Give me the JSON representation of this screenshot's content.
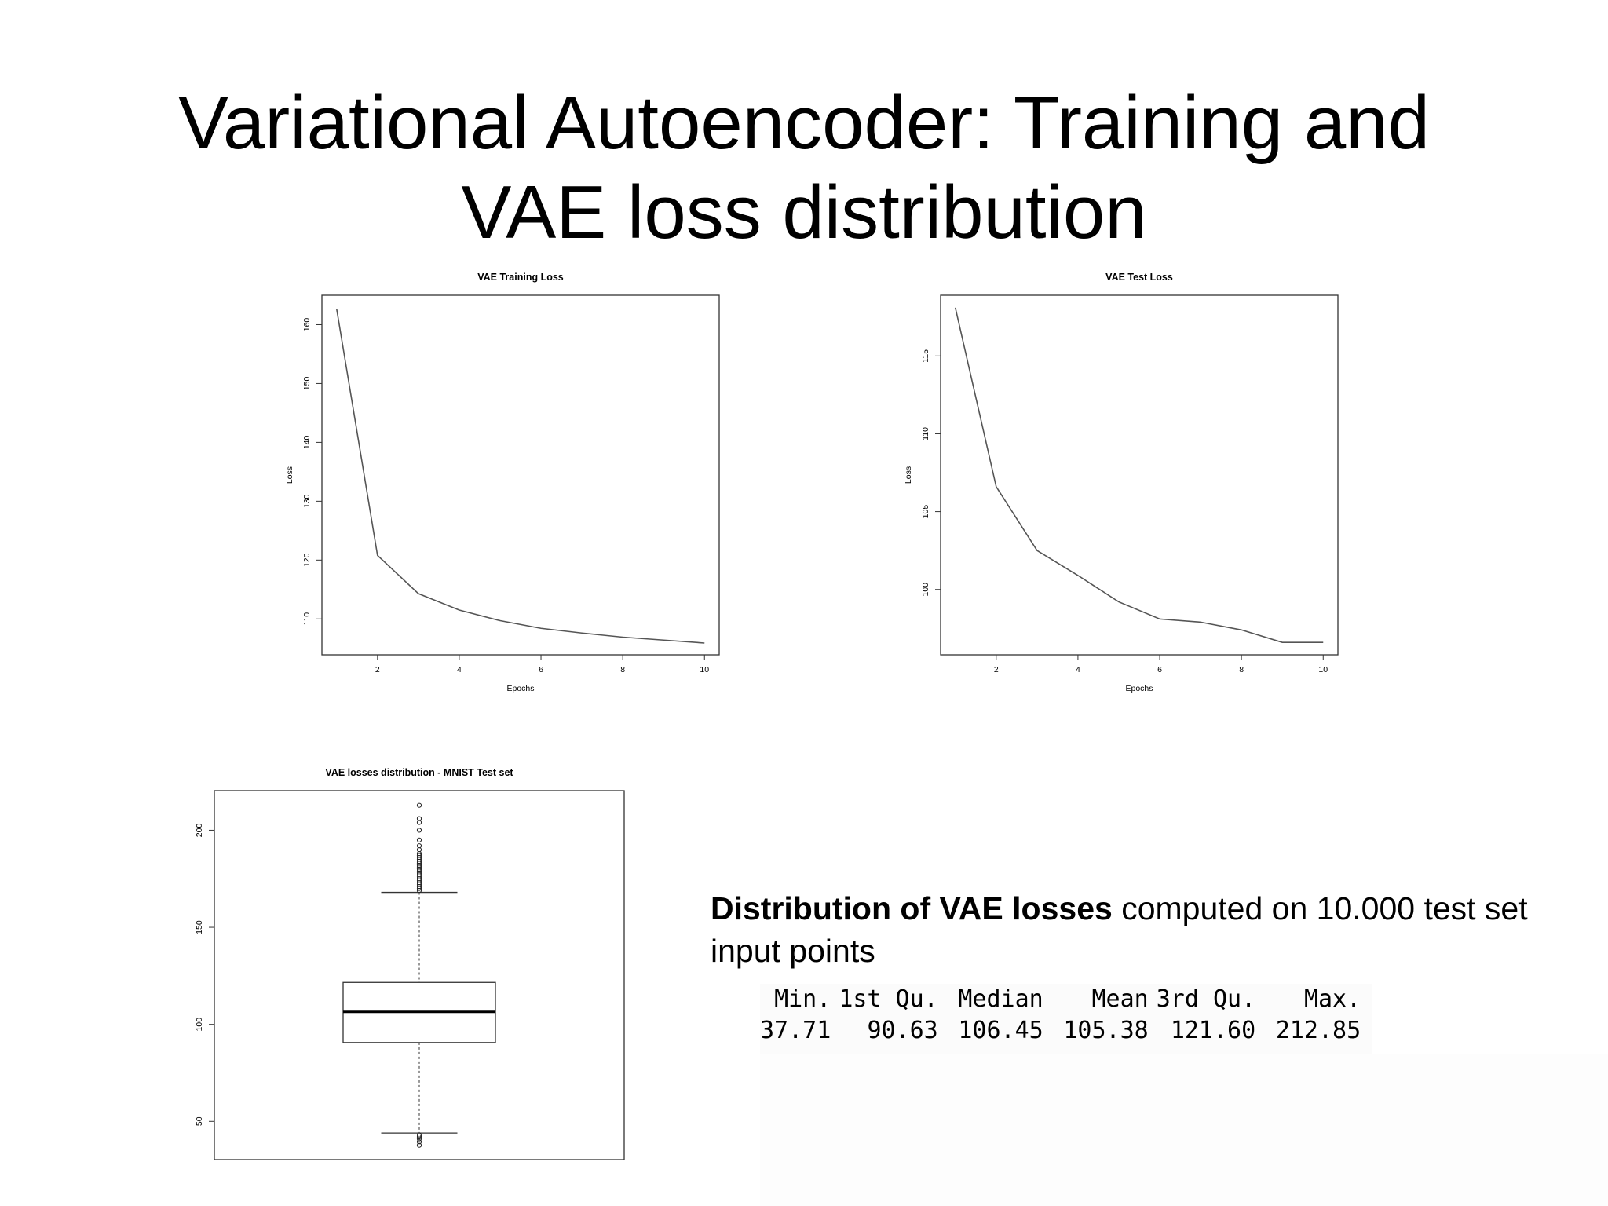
{
  "slide": {
    "title_line1": "Variational Autoencoder: Training and",
    "title_line2": "VAE loss distribution"
  },
  "description": {
    "bold": "Distribution of VAE losses",
    "rest": " computed on 10.000 test set input points"
  },
  "summary_table": {
    "headers": [
      "Min.",
      "1st Qu.",
      "Median",
      "Mean",
      "3rd Qu.",
      "Max."
    ],
    "values": [
      "37.71",
      "90.63",
      "106.45",
      "105.38",
      "121.60",
      "212.85"
    ]
  },
  "chart_data": [
    {
      "id": "train",
      "type": "line",
      "title": "VAE Training Loss",
      "xlabel": "Epochs",
      "ylabel": "Loss",
      "x": [
        1,
        2,
        3,
        4,
        5,
        6,
        7,
        8,
        9,
        10
      ],
      "y": [
        162.7,
        120.8,
        114.3,
        111.5,
        109.7,
        108.4,
        107.6,
        106.9,
        106.4,
        105.9
      ],
      "xlim": [
        0.64,
        10.36
      ],
      "ylim": [
        103.9,
        165.0
      ],
      "xticks": [
        2,
        4,
        6,
        8,
        10
      ],
      "yticks": [
        110,
        120,
        130,
        140,
        150,
        160
      ],
      "line_color": "#555555"
    },
    {
      "id": "test",
      "type": "line",
      "title": "VAE Test Loss",
      "xlabel": "Epochs",
      "ylabel": "Loss",
      "x": [
        1,
        2,
        3,
        4,
        5,
        6,
        7,
        8,
        9,
        10
      ],
      "y": [
        118.1,
        106.6,
        102.5,
        100.9,
        99.2,
        98.1,
        97.9,
        97.4,
        96.6,
        96.6
      ],
      "xlim": [
        0.64,
        10.36
      ],
      "ylim": [
        95.8,
        118.9
      ],
      "xticks": [
        2,
        4,
        6,
        8,
        10
      ],
      "yticks": [
        100,
        105,
        110,
        115
      ],
      "line_color": "#555555"
    },
    {
      "id": "box",
      "type": "box",
      "title": "VAE losses distribution - MNIST Test set",
      "ylim": [
        30.3,
        220.4
      ],
      "yticks": [
        50,
        100,
        150,
        200
      ],
      "whisker_low": 44.0,
      "q1": 90.63,
      "median": 106.45,
      "q3": 121.6,
      "whisker_high": 168.0,
      "outliers_high": [
        169,
        170,
        171,
        172,
        173,
        174,
        175,
        176,
        177,
        178,
        179,
        180,
        181,
        182,
        183,
        184,
        185,
        186,
        187,
        188,
        190,
        192,
        195,
        200,
        204,
        206,
        212.85
      ],
      "outliers_low": [
        37.71,
        39.5,
        41,
        42,
        43
      ]
    }
  ]
}
